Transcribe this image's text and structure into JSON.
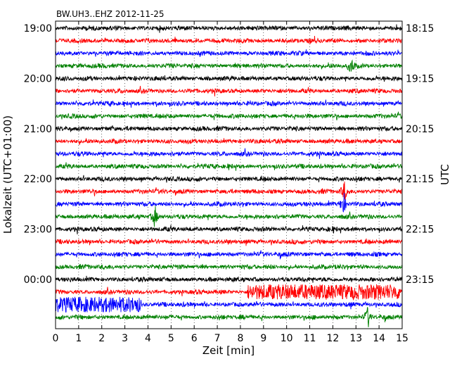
{
  "chart_data": {
    "type": "line",
    "title": "BW.UH3..EHZ 2012-11-25",
    "xlabel": "Zeit  [min]",
    "ylabel_left": "Lokalzeit (UTC+01:00)",
    "ylabel_right": "UTC",
    "xlim": [
      0,
      15
    ],
    "x_ticks": [
      0,
      1,
      2,
      3,
      4,
      5,
      6,
      7,
      8,
      9,
      10,
      11,
      12,
      13,
      14,
      15
    ],
    "x_tick_labels": [
      "0",
      "1",
      "2",
      "3",
      "4",
      "5",
      "6",
      "7",
      "8",
      "9",
      "10",
      "11",
      "12",
      "13",
      "14",
      "15"
    ],
    "grid": "dotted vertical lines at each minute",
    "trace_interval_min": 15,
    "trace_count": 24,
    "trace_colors": [
      "#000000",
      "#ff0000",
      "#0000ff",
      "#008000"
    ],
    "left_tick_labels": [
      {
        "trace": 0,
        "label": "19:00"
      },
      {
        "trace": 4,
        "label": "20:00"
      },
      {
        "trace": 8,
        "label": "21:00"
      },
      {
        "trace": 12,
        "label": "22:00"
      },
      {
        "trace": 16,
        "label": "23:00"
      },
      {
        "trace": 20,
        "label": "00:00"
      }
    ],
    "right_tick_labels": [
      {
        "trace": 0,
        "label": "18:15"
      },
      {
        "trace": 4,
        "label": "19:15"
      },
      {
        "trace": 8,
        "label": "20:15"
      },
      {
        "trace": 12,
        "label": "21:15"
      },
      {
        "trace": 16,
        "label": "22:15"
      },
      {
        "trace": 20,
        "label": "23:15"
      }
    ],
    "events": [
      {
        "trace": 3,
        "x": 12.8,
        "kind": "local event"
      },
      {
        "trace": 13,
        "x": 12.5,
        "kind": "spike"
      },
      {
        "trace": 14,
        "x": 12.45,
        "kind": "spike"
      },
      {
        "trace": 15,
        "x": 4.3,
        "kind": "spike"
      },
      {
        "trace": 21,
        "x_start": 8.3,
        "x_end": 15.0,
        "kind": "high-amplitude noise"
      },
      {
        "trace": 22,
        "x_start": 0.0,
        "x_end": 3.7,
        "kind": "high-amplitude noise"
      },
      {
        "trace": 23,
        "x": 13.5,
        "kind": "spike"
      }
    ]
  }
}
